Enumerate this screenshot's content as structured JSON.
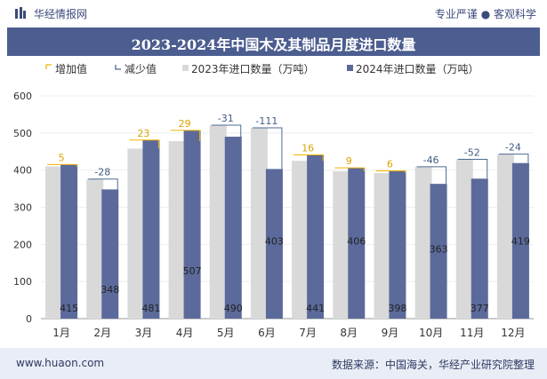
{
  "header": {
    "brand": "华经情报网",
    "slogan": "专业严谨 ● 客观科学"
  },
  "footer": {
    "url": "www.huaon.com",
    "source": "数据来源：中国海关，华经产业研究院整理"
  },
  "colors": {
    "bar_2023": "#d9d9d9",
    "bar_2024": "#5b6a9a",
    "increase": "#f0b400",
    "decrease": "#4c6b94",
    "title_bg": "#4c5d8f"
  },
  "chart_data": {
    "type": "bar",
    "title": "2023-2024年中国木及其制品月度进口数量",
    "xlabel": "",
    "ylabel": "",
    "ylim": [
      0,
      600
    ],
    "yticks": [
      0,
      100,
      200,
      300,
      400,
      500,
      600
    ],
    "categories": [
      "1月",
      "2月",
      "3月",
      "4月",
      "5月",
      "6月",
      "7月",
      "8月",
      "9月",
      "10月",
      "11月",
      "12月"
    ],
    "legend": [
      "增加值",
      "减少值",
      "2023年进口数量（万吨）",
      "2024年进口数量（万吨）"
    ],
    "series": [
      {
        "name": "2023年进口数量（万吨）",
        "values": [
          410,
          376,
          458,
          478,
          521,
          514,
          425,
          397,
          392,
          409,
          429,
          443
        ]
      },
      {
        "name": "2024年进口数量（万吨）",
        "values": [
          415,
          348,
          481,
          507,
          490,
          403,
          441,
          406,
          398,
          363,
          377,
          419
        ]
      }
    ],
    "change": [
      "5",
      "-28",
      "23",
      "29",
      "-31",
      "-111",
      "16",
      "9",
      "6",
      "-46",
      "-52",
      "-24"
    ]
  }
}
